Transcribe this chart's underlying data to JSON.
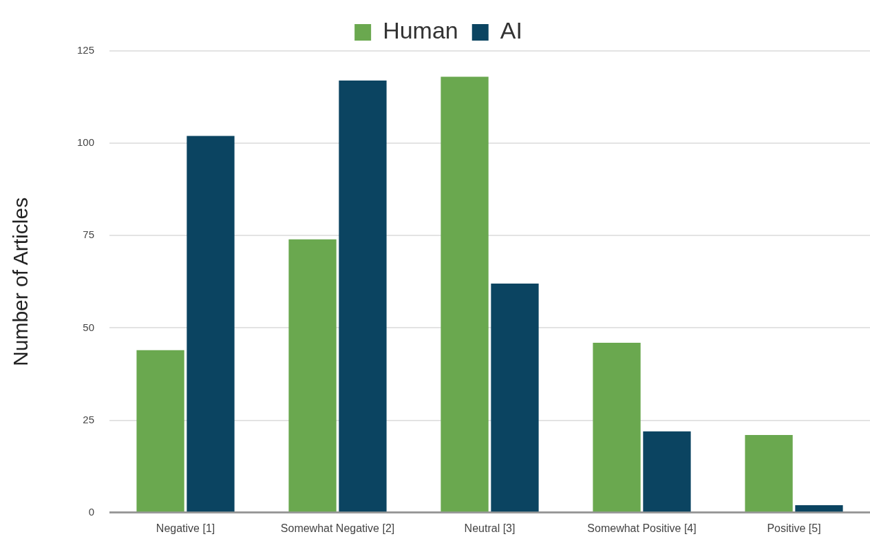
{
  "chart_data": {
    "type": "bar",
    "ylabel": "Number of Articles",
    "categories": [
      "Negative [1]",
      "Somewhat Negative [2]",
      "Neutral [3]",
      "Somewhat Positive [4]",
      "Positive [5]"
    ],
    "series": [
      {
        "name": "Human",
        "color": "#6aa84f",
        "values": [
          44,
          74,
          118,
          46,
          21
        ]
      },
      {
        "name": "AI",
        "color": "#0b4461",
        "values": [
          102,
          117,
          62,
          22,
          2
        ]
      }
    ],
    "ylim": [
      0,
      125
    ],
    "yticks": [
      0,
      25,
      50,
      75,
      100,
      125
    ],
    "grid": "y",
    "legend": "top"
  }
}
